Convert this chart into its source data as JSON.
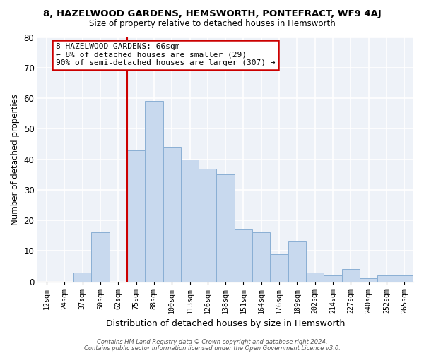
{
  "title": "8, HAZELWOOD GARDENS, HEMSWORTH, PONTEFRACT, WF9 4AJ",
  "subtitle": "Size of property relative to detached houses in Hemsworth",
  "xlabel": "Distribution of detached houses by size in Hemsworth",
  "ylabel": "Number of detached properties",
  "bar_labels": [
    "12sqm",
    "24sqm",
    "37sqm",
    "50sqm",
    "62sqm",
    "75sqm",
    "88sqm",
    "100sqm",
    "113sqm",
    "126sqm",
    "138sqm",
    "151sqm",
    "164sqm",
    "176sqm",
    "189sqm",
    "202sqm",
    "214sqm",
    "227sqm",
    "240sqm",
    "252sqm",
    "265sqm"
  ],
  "bar_values": [
    0,
    0,
    3,
    16,
    0,
    43,
    59,
    44,
    40,
    37,
    35,
    17,
    16,
    9,
    13,
    3,
    2,
    4,
    1,
    2,
    2
  ],
  "bar_color": "#c8d9ee",
  "bar_edge_color": "#8aafd4",
  "annotation_title": "8 HAZELWOOD GARDENS: 66sqm",
  "annotation_line1": "← 8% of detached houses are smaller (29)",
  "annotation_line2": "90% of semi-detached houses are larger (307) →",
  "annotation_box_color": "#ffffff",
  "annotation_box_edge": "#cc0000",
  "red_line_color": "#cc0000",
  "ylim": [
    0,
    80
  ],
  "yticks": [
    0,
    10,
    20,
    30,
    40,
    50,
    60,
    70,
    80
  ],
  "fig_bg_color": "#ffffff",
  "plot_bg_color": "#eef2f8",
  "grid_color": "#ffffff",
  "footer1": "Contains HM Land Registry data © Crown copyright and database right 2024.",
  "footer2": "Contains public sector information licensed under the Open Government Licence v3.0."
}
